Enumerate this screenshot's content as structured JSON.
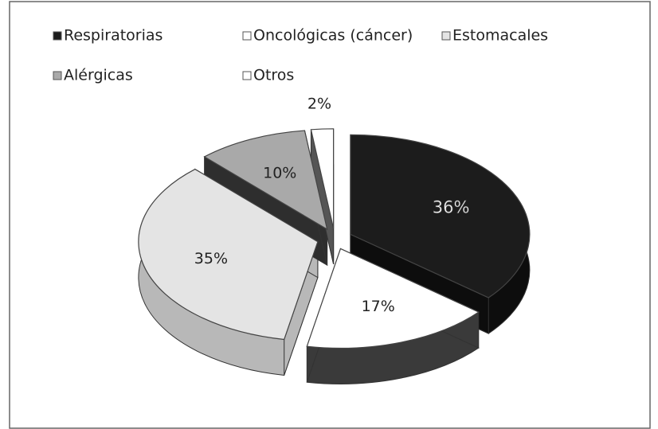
{
  "chart_data": {
    "type": "pie",
    "categories": [
      "Respiratorias",
      "Oncológicas (cáncer)",
      "Estomacales",
      "Alérgicas",
      "Otros"
    ],
    "values": [
      36,
      17,
      35,
      10,
      2
    ],
    "value_labels": [
      "36%",
      "17%",
      "35%",
      "10%",
      "2%"
    ],
    "colors": [
      "#1c1c1c",
      "#ffffff",
      "#e4e4e4",
      "#a9a9a9",
      "#ffffff"
    ],
    "legend": "top"
  }
}
